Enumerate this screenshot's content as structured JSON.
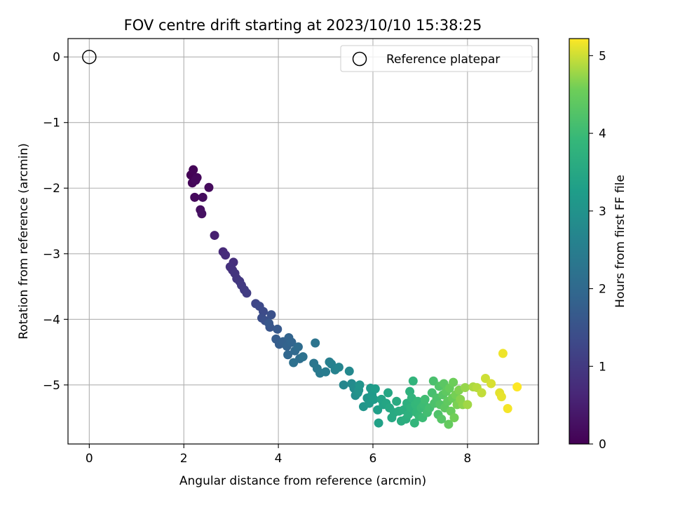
{
  "chart_data": {
    "type": "scatter",
    "title": "FOV centre drift starting at 2023/10/10 15:38:25",
    "xlabel": "Angular distance from reference (arcmin)",
    "ylabel": "Rotation from reference (arcmin)",
    "xlim": [
      -0.45,
      9.5
    ],
    "ylim": [
      -5.9,
      0.28
    ],
    "xticks": [
      0,
      2,
      4,
      6,
      8
    ],
    "xtick_labels": [
      "0",
      "2",
      "4",
      "6",
      "8"
    ],
    "yticks": [
      0,
      -1,
      -2,
      -3,
      -4,
      -5
    ],
    "ytick_labels": [
      "0",
      "−1",
      "−2",
      "−3",
      "−4",
      "−5"
    ],
    "grid": true,
    "legend": {
      "position": "top-right",
      "entries": [
        "Reference platepar"
      ]
    },
    "colorbar": {
      "label": "Hours from first FF file",
      "colormap": "viridis",
      "range": [
        0,
        5.22
      ],
      "ticks": [
        0,
        1,
        2,
        3,
        4,
        5
      ],
      "tick_labels": [
        "0",
        "1",
        "2",
        "3",
        "4",
        "5"
      ]
    },
    "reference_point": {
      "name": "Reference platepar",
      "x": 0,
      "y": 0
    },
    "series": [
      {
        "points": [
          [
            2.15,
            -1.8,
            0.02
          ],
          [
            2.2,
            -1.72,
            0.05
          ],
          [
            2.18,
            -1.92,
            0.08
          ],
          [
            2.28,
            -1.84,
            0.1
          ],
          [
            2.25,
            -1.88,
            0.12
          ],
          [
            2.23,
            -2.14,
            0.14
          ],
          [
            2.53,
            -1.99,
            0.16
          ],
          [
            2.4,
            -2.14,
            0.18
          ],
          [
            2.35,
            -2.33,
            0.22
          ],
          [
            2.38,
            -2.39,
            0.26
          ],
          [
            2.65,
            -2.72,
            0.5
          ],
          [
            2.83,
            -2.97,
            0.7
          ],
          [
            2.88,
            -3.02,
            0.75
          ],
          [
            3.05,
            -3.13,
            0.8
          ],
          [
            2.98,
            -3.2,
            0.83
          ],
          [
            3.03,
            -3.25,
            0.86
          ],
          [
            3.08,
            -3.3,
            0.9
          ],
          [
            3.12,
            -3.38,
            0.93
          ],
          [
            3.18,
            -3.42,
            0.96
          ],
          [
            3.22,
            -3.48,
            1.0
          ],
          [
            3.28,
            -3.55,
            1.03
          ],
          [
            3.33,
            -3.6,
            1.06
          ],
          [
            3.52,
            -3.76,
            1.25
          ],
          [
            3.6,
            -3.8,
            1.3
          ],
          [
            3.68,
            -3.88,
            1.35
          ],
          [
            3.65,
            -3.98,
            1.4
          ],
          [
            3.72,
            -4.02,
            1.45
          ],
          [
            3.85,
            -3.93,
            1.48
          ],
          [
            3.82,
            -4.12,
            1.55
          ],
          [
            3.8,
            -4.06,
            1.6
          ],
          [
            3.98,
            -4.15,
            1.65
          ],
          [
            3.95,
            -4.3,
            1.7
          ],
          [
            4.02,
            -4.38,
            1.75
          ],
          [
            4.1,
            -4.34,
            1.8
          ],
          [
            4.18,
            -4.41,
            1.85
          ],
          [
            4.22,
            -4.28,
            1.88
          ],
          [
            4.28,
            -4.35,
            1.9
          ],
          [
            4.2,
            -4.54,
            1.95
          ],
          [
            4.35,
            -4.48,
            2.0
          ],
          [
            4.42,
            -4.42,
            2.05
          ],
          [
            4.45,
            -4.6,
            2.1
          ],
          [
            4.32,
            -4.66,
            2.15
          ],
          [
            4.52,
            -4.57,
            2.2
          ],
          [
            4.78,
            -4.36,
            2.25
          ],
          [
            4.75,
            -4.67,
            2.3
          ],
          [
            4.82,
            -4.75,
            2.35
          ],
          [
            4.88,
            -4.82,
            2.4
          ],
          [
            5.0,
            -4.8,
            2.45
          ],
          [
            5.08,
            -4.65,
            2.5
          ],
          [
            5.12,
            -4.68,
            2.55
          ],
          [
            5.2,
            -4.77,
            2.6
          ],
          [
            5.28,
            -4.73,
            2.65
          ],
          [
            5.38,
            -5.0,
            2.7
          ],
          [
            5.5,
            -4.79,
            2.75
          ],
          [
            5.55,
            -4.98,
            2.8
          ],
          [
            5.6,
            -5.05,
            2.85
          ],
          [
            5.63,
            -5.16,
            2.9
          ],
          [
            5.68,
            -5.12,
            2.95
          ],
          [
            5.7,
            -5.08,
            3.0
          ],
          [
            5.72,
            -5.0,
            3.02
          ],
          [
            5.8,
            -5.33,
            3.05
          ],
          [
            5.88,
            -5.2,
            3.08
          ],
          [
            5.92,
            -5.28,
            3.12
          ],
          [
            5.95,
            -5.05,
            3.15
          ],
          [
            5.98,
            -5.15,
            3.18
          ],
          [
            6.02,
            -5.22,
            3.2
          ],
          [
            6.05,
            -5.06,
            3.25
          ],
          [
            6.1,
            -5.38,
            3.3
          ],
          [
            6.12,
            -5.58,
            3.35
          ],
          [
            6.18,
            -5.22,
            3.38
          ],
          [
            6.22,
            -5.3,
            3.4
          ],
          [
            6.28,
            -5.28,
            3.45
          ],
          [
            6.32,
            -5.12,
            3.48
          ],
          [
            6.35,
            -5.35,
            3.5
          ],
          [
            6.4,
            -5.5,
            3.52
          ],
          [
            6.45,
            -5.42,
            3.55
          ],
          [
            6.5,
            -5.25,
            3.58
          ],
          [
            6.55,
            -5.4,
            3.6
          ],
          [
            6.6,
            -5.55,
            3.62
          ],
          [
            6.65,
            -5.38,
            3.65
          ],
          [
            6.7,
            -5.52,
            3.68
          ],
          [
            6.72,
            -5.28,
            3.7
          ],
          [
            6.75,
            -5.45,
            3.72
          ],
          [
            6.78,
            -5.1,
            3.75
          ],
          [
            6.8,
            -5.35,
            3.78
          ],
          [
            6.82,
            -5.2,
            3.8
          ],
          [
            6.85,
            -4.94,
            3.82
          ],
          [
            6.88,
            -5.58,
            3.85
          ],
          [
            6.9,
            -5.3,
            3.88
          ],
          [
            6.92,
            -5.42,
            3.9
          ],
          [
            6.95,
            -5.25,
            3.92
          ],
          [
            6.98,
            -5.48,
            3.95
          ],
          [
            7.02,
            -5.35,
            3.98
          ],
          [
            7.05,
            -5.5,
            4.0
          ],
          [
            7.08,
            -5.3,
            4.02
          ],
          [
            7.1,
            -5.22,
            4.05
          ],
          [
            7.15,
            -5.42,
            4.08
          ],
          [
            7.2,
            -5.35,
            4.1
          ],
          [
            7.25,
            -5.12,
            4.12
          ],
          [
            7.28,
            -4.94,
            4.15
          ],
          [
            7.3,
            -5.28,
            4.18
          ],
          [
            7.35,
            -5.2,
            4.2
          ],
          [
            7.38,
            -5.45,
            4.22
          ],
          [
            7.4,
            -5.02,
            4.25
          ],
          [
            7.42,
            -5.3,
            4.28
          ],
          [
            7.45,
            -5.52,
            4.3
          ],
          [
            7.48,
            -5.15,
            4.32
          ],
          [
            7.5,
            -4.98,
            4.35
          ],
          [
            7.52,
            -5.35,
            4.38
          ],
          [
            7.55,
            -5.1,
            4.4
          ],
          [
            7.58,
            -5.25,
            4.42
          ],
          [
            7.6,
            -5.6,
            4.45
          ],
          [
            7.62,
            -5.05,
            4.48
          ],
          [
            7.65,
            -5.4,
            4.5
          ],
          [
            7.68,
            -5.2,
            4.52
          ],
          [
            7.7,
            -4.96,
            4.55
          ],
          [
            7.72,
            -5.5,
            4.58
          ],
          [
            7.75,
            -5.15,
            4.6
          ],
          [
            7.78,
            -5.3,
            4.62
          ],
          [
            7.82,
            -5.08,
            4.65
          ],
          [
            7.85,
            -5.22,
            4.68
          ],
          [
            7.9,
            -5.3,
            4.7
          ],
          [
            7.95,
            -5.04,
            4.75
          ],
          [
            8.0,
            -5.3,
            4.8
          ],
          [
            8.12,
            -5.03,
            4.85
          ],
          [
            8.2,
            -5.04,
            4.9
          ],
          [
            8.3,
            -5.12,
            4.95
          ],
          [
            8.38,
            -4.9,
            5.0
          ],
          [
            8.5,
            -4.98,
            5.05
          ],
          [
            8.68,
            -5.12,
            5.1
          ],
          [
            8.72,
            -5.18,
            5.12
          ],
          [
            8.75,
            -4.52,
            5.15
          ],
          [
            8.85,
            -5.36,
            5.18
          ],
          [
            9.05,
            -5.03,
            5.22
          ]
        ]
      }
    ]
  }
}
